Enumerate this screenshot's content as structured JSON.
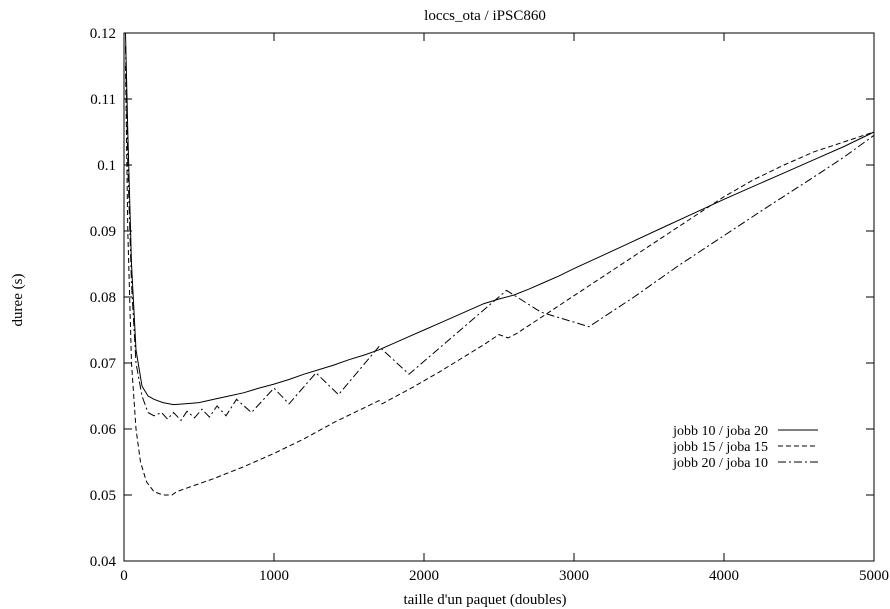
{
  "chart_data": {
    "type": "line",
    "title": "loccs_ota / iPSC860",
    "xlabel": "taille d'un paquet (doubles)",
    "ylabel": "duree (s)",
    "xlim": [
      0,
      5000
    ],
    "ylim": [
      0.04,
      0.12
    ],
    "xticks": [
      0,
      1000,
      2000,
      3000,
      4000,
      5000
    ],
    "yticks": [
      0.04,
      0.05,
      0.06,
      0.07,
      0.08,
      0.09,
      0.1,
      0.11,
      0.12
    ],
    "xtick_labels": [
      "0",
      "1000",
      "2000",
      "3000",
      "4000",
      "5000"
    ],
    "ytick_labels": [
      "0.04",
      "0.05",
      "0.06",
      "0.07",
      "0.08",
      "0.09",
      "0.1",
      "0.11",
      "0.12"
    ],
    "grid": false,
    "legend_position": "right",
    "series": [
      {
        "name": "jobb 10 / joba 20",
        "dash": "solid",
        "points": [
          [
            10,
            0.12
          ],
          [
            25,
            0.105
          ],
          [
            50,
            0.085
          ],
          [
            80,
            0.072
          ],
          [
            120,
            0.0665
          ],
          [
            160,
            0.065
          ],
          [
            200,
            0.0645
          ],
          [
            260,
            0.064
          ],
          [
            330,
            0.0637
          ],
          [
            400,
            0.0638
          ],
          [
            500,
            0.064
          ],
          [
            600,
            0.0645
          ],
          [
            700,
            0.065
          ],
          [
            800,
            0.0655
          ],
          [
            900,
            0.0662
          ],
          [
            1000,
            0.0668
          ],
          [
            1100,
            0.0675
          ],
          [
            1200,
            0.0683
          ],
          [
            1300,
            0.069
          ],
          [
            1400,
            0.0697
          ],
          [
            1500,
            0.0705
          ],
          [
            1600,
            0.0712
          ],
          [
            1700,
            0.072
          ],
          [
            1800,
            0.073
          ],
          [
            1900,
            0.074
          ],
          [
            2000,
            0.075
          ],
          [
            2100,
            0.076
          ],
          [
            2200,
            0.077
          ],
          [
            2300,
            0.078
          ],
          [
            2400,
            0.079
          ],
          [
            2500,
            0.0797
          ],
          [
            2600,
            0.0803
          ],
          [
            2700,
            0.0812
          ],
          [
            2800,
            0.0822
          ],
          [
            2900,
            0.0832
          ],
          [
            3000,
            0.0843
          ],
          [
            3200,
            0.0864
          ],
          [
            3400,
            0.0885
          ],
          [
            3600,
            0.0906
          ],
          [
            3800,
            0.0927
          ],
          [
            4000,
            0.0948
          ],
          [
            4200,
            0.0968
          ],
          [
            4400,
            0.0988
          ],
          [
            4600,
            0.1008
          ],
          [
            4800,
            0.1028
          ],
          [
            5000,
            0.105
          ]
        ]
      },
      {
        "name": "jobb 15 / joba 15",
        "dash": "dashed",
        "points": [
          [
            10,
            0.115
          ],
          [
            25,
            0.09
          ],
          [
            50,
            0.07
          ],
          [
            80,
            0.06
          ],
          [
            110,
            0.055
          ],
          [
            150,
            0.052
          ],
          [
            200,
            0.0505
          ],
          [
            260,
            0.05
          ],
          [
            320,
            0.05
          ],
          [
            350,
            0.0505
          ],
          [
            450,
            0.0513
          ],
          [
            600,
            0.0525
          ],
          [
            800,
            0.0543
          ],
          [
            1000,
            0.0563
          ],
          [
            1200,
            0.0585
          ],
          [
            1400,
            0.061
          ],
          [
            1600,
            0.0632
          ],
          [
            1700,
            0.0643
          ],
          [
            1720,
            0.0638
          ],
          [
            1800,
            0.0648
          ],
          [
            1900,
            0.066
          ],
          [
            2000,
            0.0673
          ],
          [
            2100,
            0.0686
          ],
          [
            2200,
            0.07
          ],
          [
            2300,
            0.0714
          ],
          [
            2400,
            0.0728
          ],
          [
            2500,
            0.0743
          ],
          [
            2560,
            0.0738
          ],
          [
            2620,
            0.0745
          ],
          [
            2700,
            0.0757
          ],
          [
            2800,
            0.0772
          ],
          [
            2900,
            0.0787
          ],
          [
            3000,
            0.0802
          ],
          [
            3200,
            0.0832
          ],
          [
            3400,
            0.0862
          ],
          [
            3600,
            0.0892
          ],
          [
            3800,
            0.0922
          ],
          [
            4000,
            0.0952
          ],
          [
            4200,
            0.0978
          ],
          [
            4400,
            0.1
          ],
          [
            4600,
            0.102
          ],
          [
            4800,
            0.1035
          ],
          [
            5000,
            0.105
          ]
        ]
      },
      {
        "name": "jobb 20 / joba 10",
        "dash": "dashdot",
        "points": [
          [
            10,
            0.118
          ],
          [
            25,
            0.1
          ],
          [
            50,
            0.082
          ],
          [
            80,
            0.07
          ],
          [
            120,
            0.065
          ],
          [
            160,
            0.0625
          ],
          [
            200,
            0.062
          ],
          [
            250,
            0.0625
          ],
          [
            290,
            0.0615
          ],
          [
            330,
            0.0625
          ],
          [
            380,
            0.0613
          ],
          [
            420,
            0.0627
          ],
          [
            470,
            0.0617
          ],
          [
            520,
            0.063
          ],
          [
            570,
            0.0618
          ],
          [
            620,
            0.0635
          ],
          [
            680,
            0.062
          ],
          [
            750,
            0.0645
          ],
          [
            850,
            0.0625
          ],
          [
            1000,
            0.0662
          ],
          [
            1100,
            0.0638
          ],
          [
            1280,
            0.0685
          ],
          [
            1430,
            0.0652
          ],
          [
            1700,
            0.0725
          ],
          [
            1900,
            0.0683
          ],
          [
            2550,
            0.081
          ],
          [
            2780,
            0.0777
          ],
          [
            3100,
            0.0755
          ],
          [
            3400,
            0.08
          ],
          [
            3700,
            0.0848
          ],
          [
            4000,
            0.0893
          ],
          [
            4300,
            0.0938
          ],
          [
            4600,
            0.0982
          ],
          [
            4800,
            0.1012
          ],
          [
            5000,
            0.1045
          ]
        ]
      }
    ]
  }
}
